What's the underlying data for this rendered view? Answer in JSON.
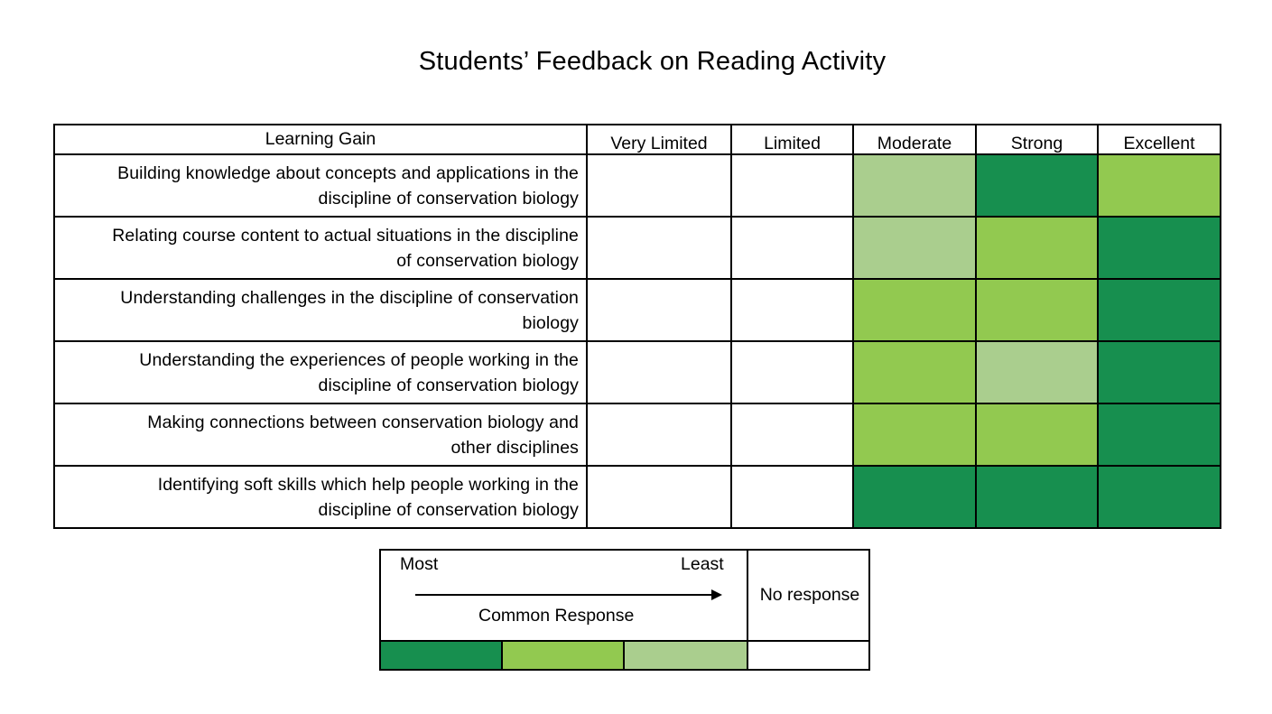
{
  "chart_data": {
    "type": "heatmap",
    "title": "Students’ Feedback on Reading Activity",
    "row_header": "Learning Gain",
    "columns": [
      "Very Limited",
      "Limited",
      "Moderate",
      "Strong",
      "Excellent"
    ],
    "rows": [
      {
        "label_lines": [
          "Building knowledge about concepts and applications in the",
          "discipline of conservation biology"
        ],
        "values": [
          0,
          0,
          3,
          1,
          2
        ]
      },
      {
        "label_lines": [
          "Relating course content to actual situations in the discipline",
          "of conservation biology"
        ],
        "values": [
          0,
          0,
          3,
          2,
          1
        ]
      },
      {
        "label_lines": [
          "Understanding challenges in the discipline of conservation",
          "biology"
        ],
        "values": [
          0,
          0,
          2,
          2,
          1
        ]
      },
      {
        "label_lines": [
          "Understanding the experiences of people working in the",
          "discipline of conservation biology"
        ],
        "values": [
          0,
          0,
          2,
          3,
          1
        ]
      },
      {
        "label_lines": [
          "Making connections between conservation biology and",
          "other disciplines"
        ],
        "values": [
          0,
          0,
          2,
          2,
          1
        ]
      },
      {
        "label_lines": [
          "Identifying soft skills which help people working in the",
          "discipline of conservation biology"
        ],
        "values": [
          0,
          0,
          1,
          1,
          1
        ]
      }
    ],
    "value_scale": {
      "0": "No response",
      "1": "Most common response",
      "2": "Second most common response",
      "3": "Least common response"
    },
    "colors": {
      "0": "#ffffff",
      "1": "#178f4f",
      "2": "#92c950",
      "3": "#aace8e"
    },
    "legend": {
      "most": "Most",
      "least": "Least",
      "caption": "Common Response",
      "no_response": "No response",
      "swatch_levels": [
        1,
        2,
        3,
        0
      ]
    }
  }
}
